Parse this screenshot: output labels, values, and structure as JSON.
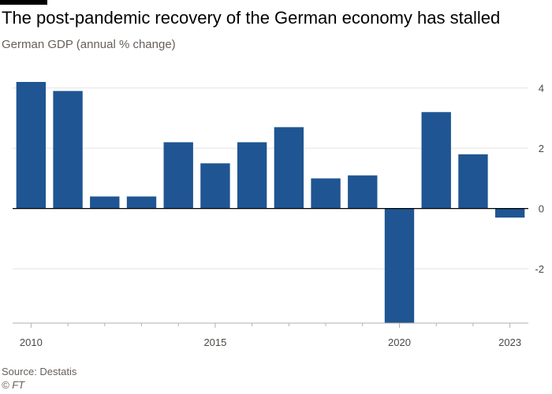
{
  "header": {
    "title": "The post-pandemic recovery of the German economy has stalled",
    "subtitle": "German GDP (annual % change)"
  },
  "footer": {
    "source": "Source: Destatis",
    "credit": "© FT"
  },
  "colors": {
    "bar": "#1f5592",
    "grid": "#e6e2df",
    "baseline": "#000000",
    "axis": "#b5b0ab"
  },
  "chart_data": {
    "type": "bar",
    "categories": [
      "2010",
      "2011",
      "2012",
      "2013",
      "2014",
      "2015",
      "2016",
      "2017",
      "2018",
      "2019",
      "2020",
      "2021",
      "2022",
      "2023"
    ],
    "values": [
      4.2,
      3.9,
      0.4,
      0.4,
      2.2,
      1.5,
      2.2,
      2.7,
      1.0,
      1.1,
      -3.8,
      3.2,
      1.8,
      -0.3
    ],
    "title": "The post-pandemic recovery of the German economy has stalled",
    "subtitle": "German GDP (annual % change)",
    "xlabel": "",
    "ylabel": "",
    "ylim": [
      -3.8,
      4.2
    ],
    "yticks": [
      -2,
      0,
      2,
      4
    ],
    "xtick_labels": [
      "2010",
      "2015",
      "2020",
      "2023"
    ],
    "grid": true,
    "y_axis_position": "right"
  }
}
